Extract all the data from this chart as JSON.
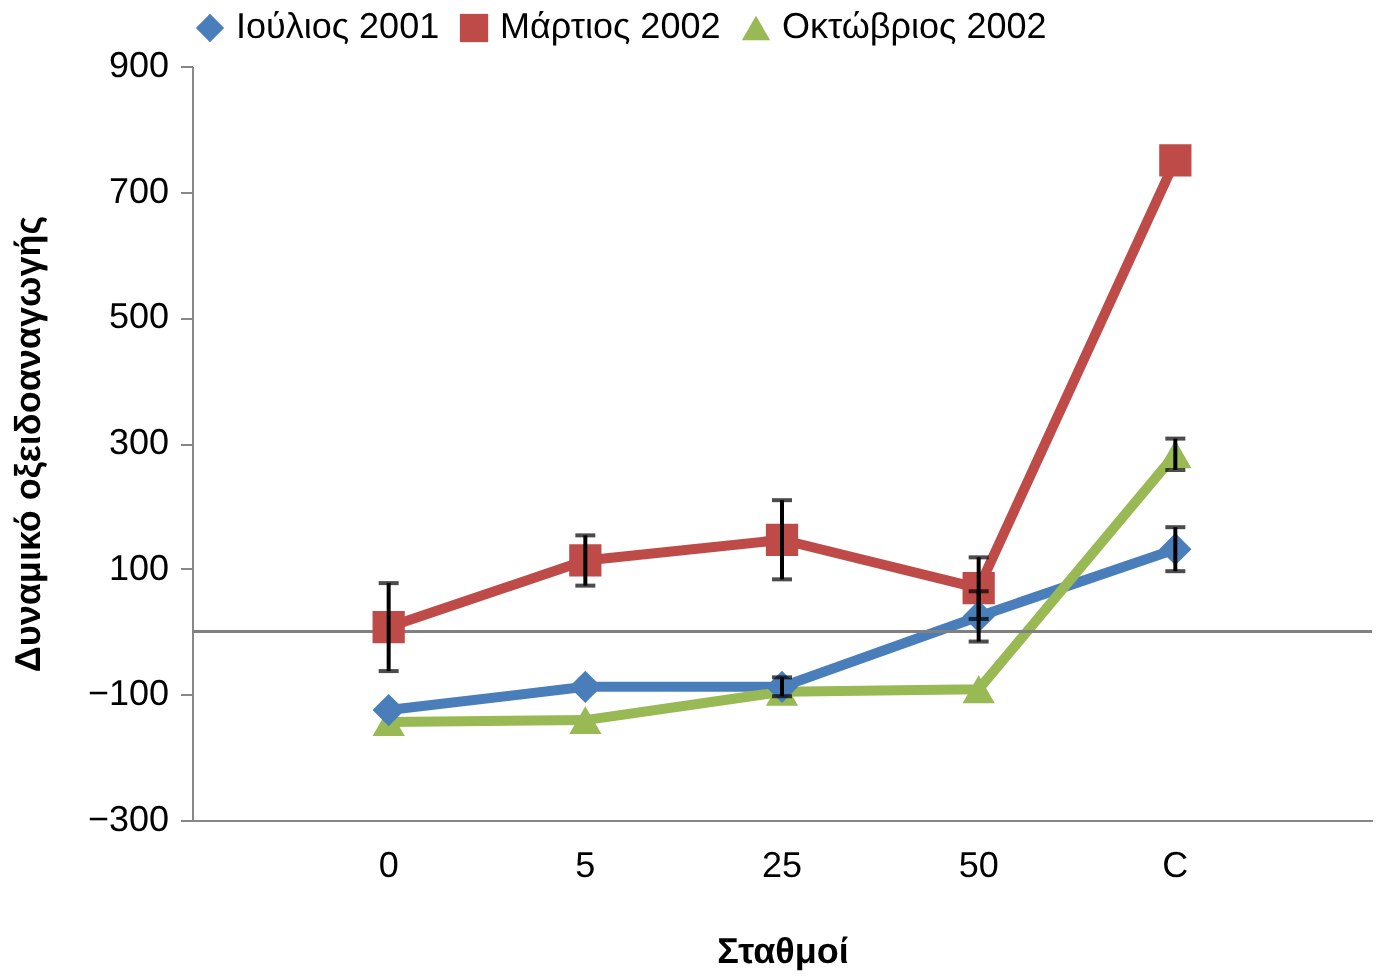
{
  "chart_data": {
    "type": "line",
    "xlabel": "Σταθμοί",
    "ylabel": "Δυναμικό οξειδοαναγωγής",
    "categories": [
      "0",
      "5",
      "25",
      "50",
      "C"
    ],
    "ylim": [
      -300,
      900
    ],
    "yticks": [
      -300,
      -100,
      100,
      300,
      500,
      700,
      900
    ],
    "legend": "top",
    "ref_lines": [
      {
        "axis": "y",
        "value": 0,
        "color": "#808080"
      }
    ],
    "series": [
      {
        "name": "Ιούλιος 2001",
        "color": "#4a7ebb",
        "marker": "diamond",
        "values": [
          -125,
          -88,
          -88,
          24,
          131
        ],
        "errors": [
          null,
          null,
          15,
          40,
          35
        ]
      },
      {
        "name": "Μάρτιος 2002",
        "color": "#be4b48",
        "marker": "square",
        "values": [
          7,
          113,
          146,
          69,
          750
        ],
        "errors": [
          70,
          40,
          63,
          49,
          null
        ]
      },
      {
        "name": "Οκτώβριος 2002",
        "color": "#98b954",
        "marker": "triangle",
        "values": [
          -144,
          -141,
          -96,
          -92,
          282
        ],
        "errors": [
          null,
          null,
          null,
          null,
          25
        ]
      }
    ]
  }
}
